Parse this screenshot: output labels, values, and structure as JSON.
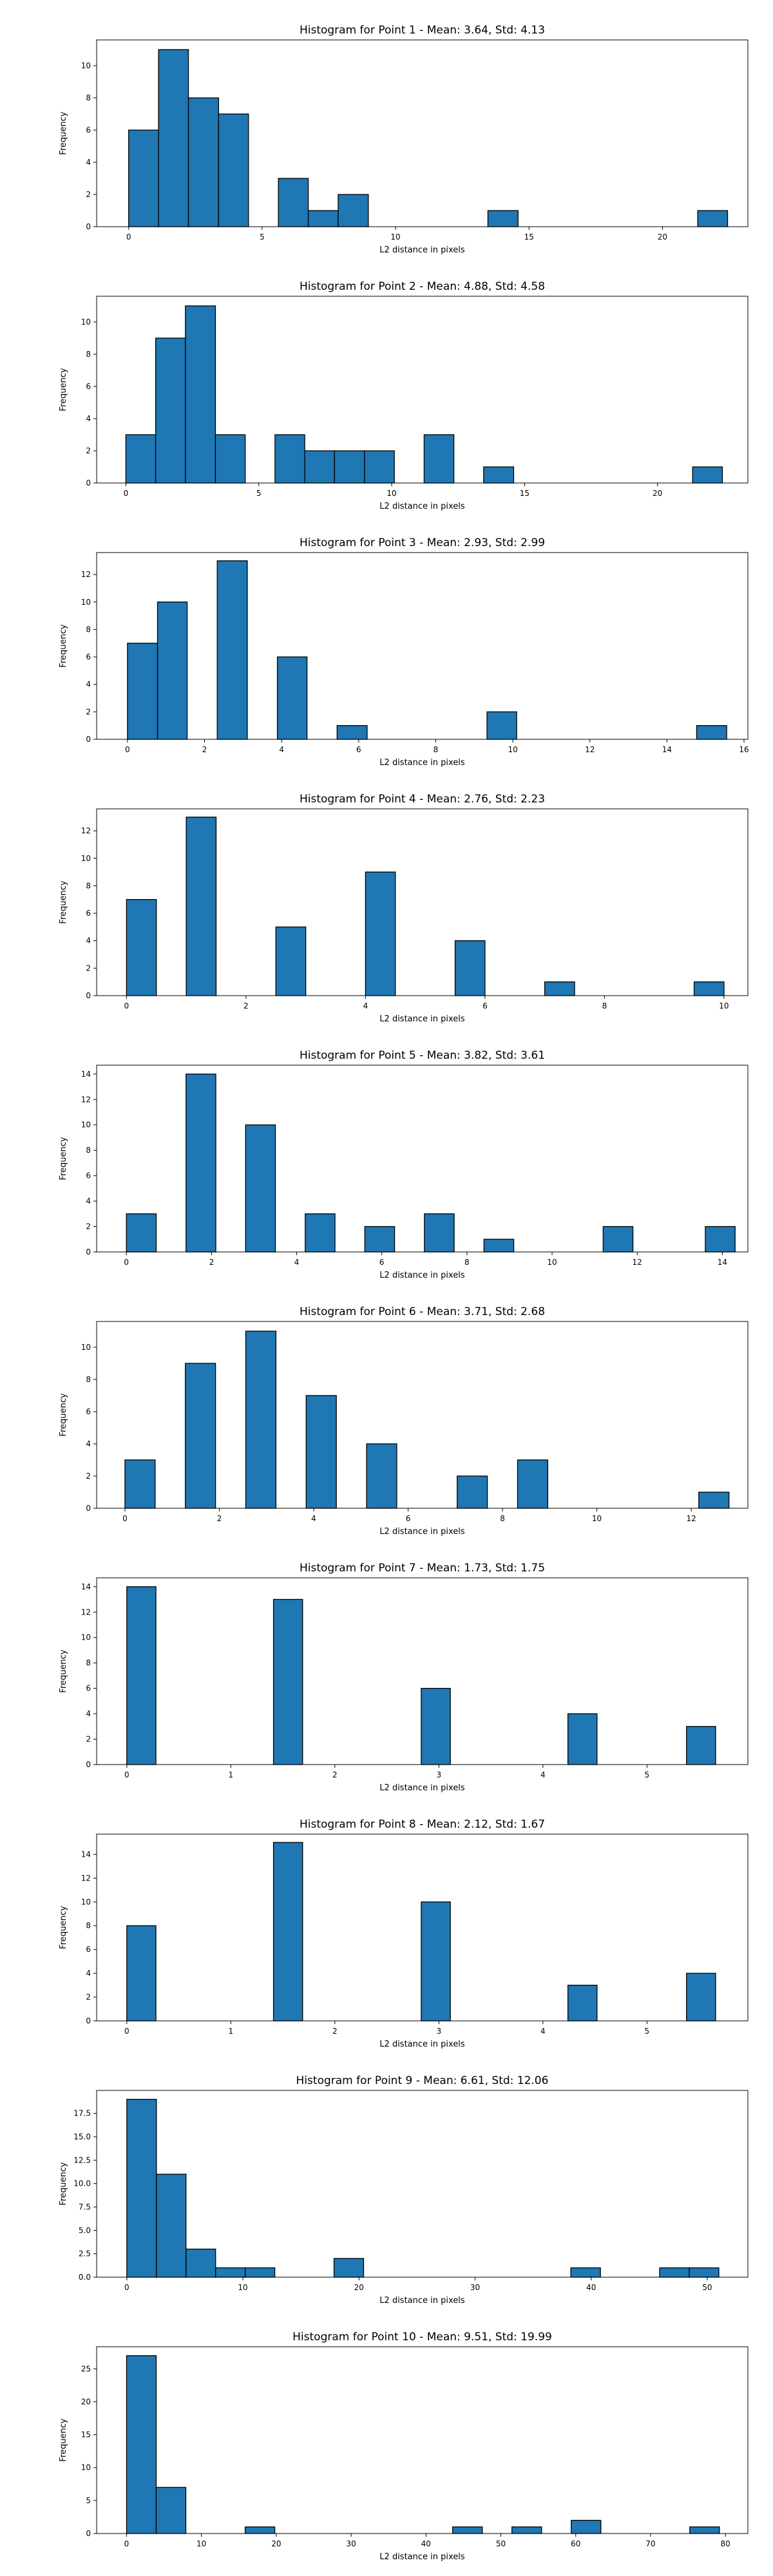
{
  "colors": {
    "bar_fill": "#1f77b4",
    "bar_edge": "#000000",
    "axes": "#000000",
    "background": "#ffffff"
  },
  "chart_data": [
    {
      "type": "bar",
      "title": "Histogram for Point 1 - Mean: 3.64, Std: 4.13",
      "xlabel": "L2 distance in pixels",
      "ylabel": "Frequency",
      "xlim": [
        -1.2,
        23.2
      ],
      "ylim": [
        0,
        11.6
      ],
      "xticks": [
        0,
        5,
        10,
        15,
        20
      ],
      "xtick_labels": [
        "0",
        "5",
        "10",
        "15",
        "20"
      ],
      "yticks": [
        0,
        2,
        4,
        6,
        8,
        10
      ],
      "ytick_labels": [
        "0",
        "2",
        "4",
        "6",
        "8",
        "10"
      ],
      "bins": [
        {
          "x0": 0.0,
          "x1": 1.12,
          "count": 6
        },
        {
          "x0": 1.12,
          "x1": 2.24,
          "count": 11
        },
        {
          "x0": 2.24,
          "x1": 3.37,
          "count": 8
        },
        {
          "x0": 3.37,
          "x1": 4.49,
          "count": 7
        },
        {
          "x0": 5.61,
          "x1": 6.73,
          "count": 3
        },
        {
          "x0": 6.73,
          "x1": 7.85,
          "count": 1
        },
        {
          "x0": 7.85,
          "x1": 8.98,
          "count": 2
        },
        {
          "x0": 13.46,
          "x1": 14.59,
          "count": 1
        },
        {
          "x0": 21.32,
          "x1": 22.44,
          "count": 1
        }
      ],
      "grid": false
    },
    {
      "type": "bar",
      "title": "Histogram for Point 2 - Mean: 4.88, Std: 4.58",
      "xlabel": "L2 distance in pixels",
      "ylabel": "Frequency",
      "xlim": [
        -1.1,
        23.4
      ],
      "ylim": [
        0,
        11.6
      ],
      "xticks": [
        0,
        5,
        10,
        15,
        20
      ],
      "xtick_labels": [
        "0",
        "5",
        "10",
        "15",
        "20"
      ],
      "yticks": [
        0,
        2,
        4,
        6,
        8,
        10
      ],
      "ytick_labels": [
        "0",
        "2",
        "4",
        "6",
        "8",
        "10"
      ],
      "bins": [
        {
          "x0": 0.0,
          "x1": 1.12,
          "count": 3
        },
        {
          "x0": 1.12,
          "x1": 2.24,
          "count": 9
        },
        {
          "x0": 2.24,
          "x1": 3.37,
          "count": 11
        },
        {
          "x0": 3.37,
          "x1": 4.49,
          "count": 3
        },
        {
          "x0": 5.61,
          "x1": 6.73,
          "count": 3
        },
        {
          "x0": 6.73,
          "x1": 7.85,
          "count": 2
        },
        {
          "x0": 7.85,
          "x1": 8.98,
          "count": 2
        },
        {
          "x0": 8.98,
          "x1": 10.1,
          "count": 2
        },
        {
          "x0": 11.22,
          "x1": 12.34,
          "count": 3
        },
        {
          "x0": 13.46,
          "x1": 14.59,
          "count": 1
        },
        {
          "x0": 21.32,
          "x1": 22.44,
          "count": 1
        }
      ],
      "grid": false
    },
    {
      "type": "bar",
      "title": "Histogram for Point 3 - Mean: 2.93, Std: 2.99",
      "xlabel": "L2 distance in pixels",
      "ylabel": "Frequency",
      "xlim": [
        -0.8,
        16.1
      ],
      "ylim": [
        0,
        13.6
      ],
      "xticks": [
        0,
        2,
        4,
        6,
        8,
        10,
        12,
        14,
        16
      ],
      "xtick_labels": [
        "0",
        "2",
        "4",
        "6",
        "8",
        "10",
        "12",
        "14",
        "16"
      ],
      "yticks": [
        0,
        2,
        4,
        6,
        8,
        10,
        12
      ],
      "ytick_labels": [
        "0",
        "2",
        "4",
        "6",
        "8",
        "10",
        "12"
      ],
      "bins": [
        {
          "x0": 0.0,
          "x1": 0.78,
          "count": 7
        },
        {
          "x0": 0.78,
          "x1": 1.55,
          "count": 10
        },
        {
          "x0": 2.33,
          "x1": 3.11,
          "count": 13
        },
        {
          "x0": 3.89,
          "x1": 4.66,
          "count": 6
        },
        {
          "x0": 5.44,
          "x1": 6.22,
          "count": 1
        },
        {
          "x0": 9.33,
          "x1": 10.1,
          "count": 2
        },
        {
          "x0": 14.77,
          "x1": 15.55,
          "count": 1
        }
      ],
      "grid": false
    },
    {
      "type": "bar",
      "title": "Histogram for Point 4 - Mean: 2.76, Std: 2.23",
      "xlabel": "L2 distance in pixels",
      "ylabel": "Frequency",
      "xlim": [
        -0.5,
        10.4
      ],
      "ylim": [
        0,
        13.6
      ],
      "xticks": [
        0,
        2,
        4,
        6,
        8,
        10
      ],
      "xtick_labels": [
        "0",
        "2",
        "4",
        "6",
        "8",
        "10"
      ],
      "yticks": [
        0,
        2,
        4,
        6,
        8,
        10,
        12
      ],
      "ytick_labels": [
        "0",
        "2",
        "4",
        "6",
        "8",
        "10",
        "12"
      ],
      "bins": [
        {
          "x0": 0.0,
          "x1": 0.5,
          "count": 7
        },
        {
          "x0": 1.0,
          "x1": 1.5,
          "count": 13
        },
        {
          "x0": 2.5,
          "x1": 3.0,
          "count": 5
        },
        {
          "x0": 4.0,
          "x1": 4.5,
          "count": 9
        },
        {
          "x0": 5.5,
          "x1": 6.0,
          "count": 4
        },
        {
          "x0": 7.0,
          "x1": 7.5,
          "count": 1
        },
        {
          "x0": 9.5,
          "x1": 10.0,
          "count": 1
        }
      ],
      "grid": false
    },
    {
      "type": "bar",
      "title": "Histogram for Point 5 - Mean: 3.82, Std: 3.61",
      "xlabel": "L2 distance in pixels",
      "ylabel": "Frequency",
      "xlim": [
        -0.7,
        14.6
      ],
      "ylim": [
        0,
        14.7
      ],
      "xticks": [
        0,
        2,
        4,
        6,
        8,
        10,
        12,
        14
      ],
      "xtick_labels": [
        "0",
        "2",
        "4",
        "6",
        "8",
        "10",
        "12",
        "14"
      ],
      "yticks": [
        0,
        2,
        4,
        6,
        8,
        10,
        12,
        14
      ],
      "ytick_labels": [
        "0",
        "2",
        "4",
        "6",
        "8",
        "10",
        "12",
        "14"
      ],
      "bins": [
        {
          "x0": 0.0,
          "x1": 0.7,
          "count": 3
        },
        {
          "x0": 1.4,
          "x1": 2.1,
          "count": 14
        },
        {
          "x0": 2.8,
          "x1": 3.5,
          "count": 10
        },
        {
          "x0": 4.2,
          "x1": 4.9,
          "count": 3
        },
        {
          "x0": 5.6,
          "x1": 6.3,
          "count": 2
        },
        {
          "x0": 7.0,
          "x1": 7.7,
          "count": 3
        },
        {
          "x0": 8.4,
          "x1": 9.1,
          "count": 1
        },
        {
          "x0": 11.2,
          "x1": 11.9,
          "count": 2
        },
        {
          "x0": 13.6,
          "x1": 14.3,
          "count": 2
        }
      ],
      "grid": false
    },
    {
      "type": "bar",
      "title": "Histogram for Point 6 - Mean: 3.71, Std: 2.68",
      "xlabel": "L2 distance in pixels",
      "ylabel": "Frequency",
      "xlim": [
        -0.6,
        13.2
      ],
      "ylim": [
        0,
        11.6
      ],
      "xticks": [
        0,
        2,
        4,
        6,
        8,
        10,
        12
      ],
      "xtick_labels": [
        "0",
        "2",
        "4",
        "6",
        "8",
        "10",
        "12"
      ],
      "yticks": [
        0,
        2,
        4,
        6,
        8,
        10
      ],
      "ytick_labels": [
        "0",
        "2",
        "4",
        "6",
        "8",
        "10"
      ],
      "bins": [
        {
          "x0": 0.0,
          "x1": 0.64,
          "count": 3
        },
        {
          "x0": 1.28,
          "x1": 1.92,
          "count": 9
        },
        {
          "x0": 2.56,
          "x1": 3.2,
          "count": 11
        },
        {
          "x0": 3.84,
          "x1": 4.48,
          "count": 7
        },
        {
          "x0": 5.12,
          "x1": 5.76,
          "count": 4
        },
        {
          "x0": 7.04,
          "x1": 7.68,
          "count": 2
        },
        {
          "x0": 8.32,
          "x1": 8.96,
          "count": 3
        },
        {
          "x0": 12.16,
          "x1": 12.8,
          "count": 1
        }
      ],
      "grid": false
    },
    {
      "type": "bar",
      "title": "Histogram for Point 7 - Mean: 1.73, Std: 1.75",
      "xlabel": "L2 distance in pixels",
      "ylabel": "Frequency",
      "xlim": [
        -0.29,
        5.97
      ],
      "ylim": [
        0,
        14.7
      ],
      "xticks": [
        0,
        1,
        2,
        3,
        4,
        5
      ],
      "xtick_labels": [
        "0",
        "1",
        "2",
        "3",
        "4",
        "5"
      ],
      "yticks": [
        0,
        2,
        4,
        6,
        8,
        10,
        12,
        14
      ],
      "ytick_labels": [
        "0",
        "2",
        "4",
        "6",
        "8",
        "10",
        "12",
        "14"
      ],
      "bins": [
        {
          "x0": 0.0,
          "x1": 0.28,
          "count": 14
        },
        {
          "x0": 1.41,
          "x1": 1.69,
          "count": 13
        },
        {
          "x0": 2.83,
          "x1": 3.11,
          "count": 6
        },
        {
          "x0": 4.24,
          "x1": 4.52,
          "count": 4
        },
        {
          "x0": 5.38,
          "x1": 5.66,
          "count": 3
        }
      ],
      "grid": false
    },
    {
      "type": "bar",
      "title": "Histogram for Point 8 - Mean: 2.12, Std: 1.67",
      "xlabel": "L2 distance in pixels",
      "ylabel": "Frequency",
      "xlim": [
        -0.29,
        5.97
      ],
      "ylim": [
        0,
        15.7
      ],
      "xticks": [
        0,
        1,
        2,
        3,
        4,
        5
      ],
      "xtick_labels": [
        "0",
        "1",
        "2",
        "3",
        "4",
        "5"
      ],
      "yticks": [
        0,
        2,
        4,
        6,
        8,
        10,
        12,
        14
      ],
      "ytick_labels": [
        "0",
        "2",
        "4",
        "6",
        "8",
        "10",
        "12",
        "14"
      ],
      "bins": [
        {
          "x0": 0.0,
          "x1": 0.28,
          "count": 8
        },
        {
          "x0": 1.41,
          "x1": 1.69,
          "count": 15
        },
        {
          "x0": 2.83,
          "x1": 3.11,
          "count": 10
        },
        {
          "x0": 4.24,
          "x1": 4.52,
          "count": 3
        },
        {
          "x0": 5.38,
          "x1": 5.66,
          "count": 4
        }
      ],
      "grid": false
    },
    {
      "type": "bar",
      "title": "Histogram for Point 9 - Mean: 6.61, Std: 12.06",
      "xlabel": "L2 distance in pixels",
      "ylabel": "Frequency",
      "xlim": [
        -2.6,
        53.5
      ],
      "ylim": [
        0,
        19.95
      ],
      "xticks": [
        0,
        10,
        20,
        30,
        40,
        50
      ],
      "xtick_labels": [
        "0",
        "10",
        "20",
        "30",
        "40",
        "50"
      ],
      "yticks": [
        0,
        2.5,
        5,
        7.5,
        10,
        12.5,
        15,
        17.5
      ],
      "ytick_labels": [
        "0.0",
        "2.5",
        "5.0",
        "7.5",
        "10.0",
        "12.5",
        "15.0",
        "17.5"
      ],
      "bins": [
        {
          "x0": 0.0,
          "x1": 2.55,
          "count": 19
        },
        {
          "x0": 2.55,
          "x1": 5.1,
          "count": 11
        },
        {
          "x0": 5.1,
          "x1": 7.65,
          "count": 3
        },
        {
          "x0": 7.65,
          "x1": 10.2,
          "count": 1
        },
        {
          "x0": 10.2,
          "x1": 12.75,
          "count": 1
        },
        {
          "x0": 17.85,
          "x1": 20.4,
          "count": 2
        },
        {
          "x0": 38.25,
          "x1": 40.8,
          "count": 1
        },
        {
          "x0": 45.9,
          "x1": 48.45,
          "count": 1
        },
        {
          "x0": 48.45,
          "x1": 51.0,
          "count": 1
        }
      ],
      "grid": false
    },
    {
      "type": "bar",
      "title": "Histogram for Point 10 - Mean: 9.51, Std: 19.99",
      "xlabel": "L2 distance in pixels",
      "ylabel": "Frequency",
      "xlim": [
        -4.0,
        83.0
      ],
      "ylim": [
        0,
        28.35
      ],
      "xticks": [
        0,
        10,
        20,
        30,
        40,
        50,
        60,
        70,
        80
      ],
      "xtick_labels": [
        "0",
        "10",
        "20",
        "30",
        "40",
        "50",
        "60",
        "70",
        "80"
      ],
      "yticks": [
        0,
        5,
        10,
        15,
        20,
        25
      ],
      "ytick_labels": [
        "0",
        "5",
        "10",
        "15",
        "20",
        "25"
      ],
      "bins": [
        {
          "x0": 0.0,
          "x1": 3.96,
          "count": 27
        },
        {
          "x0": 3.96,
          "x1": 7.92,
          "count": 7
        },
        {
          "x0": 15.84,
          "x1": 19.8,
          "count": 1
        },
        {
          "x0": 43.56,
          "x1": 47.52,
          "count": 1
        },
        {
          "x0": 51.48,
          "x1": 55.44,
          "count": 1
        },
        {
          "x0": 59.4,
          "x1": 63.36,
          "count": 2
        },
        {
          "x0": 75.24,
          "x1": 79.2,
          "count": 1
        }
      ],
      "grid": false
    }
  ]
}
